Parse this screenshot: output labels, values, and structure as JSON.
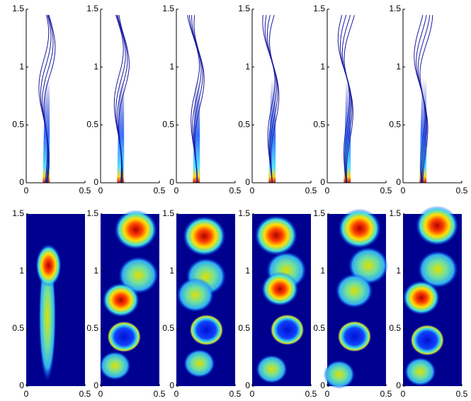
{
  "chart_data": [
    {
      "type": "contour",
      "xlim": [
        0,
        0.5
      ],
      "ylim": [
        0,
        1.5
      ],
      "xticks": [
        0,
        0.5
      ],
      "yticks": [
        0,
        0.5,
        1,
        1.5
      ]
    },
    {
      "type": "contour",
      "xlim": [
        0,
        0.5
      ],
      "ylim": [
        0,
        1.5
      ],
      "xticks": [
        0,
        0.5
      ],
      "yticks": [
        0,
        0.5,
        1,
        1.5
      ]
    },
    {
      "type": "contour",
      "xlim": [
        0,
        0.5
      ],
      "ylim": [
        0,
        1.5
      ],
      "xticks": [
        0,
        0.5
      ],
      "yticks": [
        0,
        0.5,
        1,
        1.5
      ]
    },
    {
      "type": "contour",
      "xlim": [
        0,
        0.5
      ],
      "ylim": [
        0,
        1.5
      ],
      "xticks": [
        0,
        0.5
      ],
      "yticks": [
        0,
        0.5,
        1,
        1.5
      ]
    },
    {
      "type": "contour",
      "xlim": [
        0,
        0.5
      ],
      "ylim": [
        0,
        1.5
      ],
      "xticks": [
        0,
        0.5
      ],
      "yticks": [
        0,
        0.5,
        1,
        1.5
      ]
    },
    {
      "type": "contour",
      "xlim": [
        0,
        0.5
      ],
      "ylim": [
        0,
        1.5
      ],
      "xticks": [
        0,
        0.5
      ],
      "yticks": [
        0,
        0.5,
        1,
        1.5
      ]
    },
    {
      "type": "heatmap",
      "xlim": [
        0,
        0.5
      ],
      "ylim": [
        0,
        1.5
      ],
      "xticks": [
        0,
        0.5
      ],
      "yticks": [
        0,
        0.5,
        1,
        1.5
      ]
    },
    {
      "type": "heatmap",
      "xlim": [
        0,
        0.5
      ],
      "ylim": [
        0,
        1.5
      ],
      "xticks": [
        0,
        0.5
      ],
      "yticks": [
        0,
        0.5,
        1,
        1.5
      ]
    },
    {
      "type": "heatmap",
      "xlim": [
        0,
        0.5
      ],
      "ylim": [
        0,
        1.5
      ],
      "xticks": [
        0,
        0.5
      ],
      "yticks": [
        0,
        0.5,
        1,
        1.5
      ]
    },
    {
      "type": "heatmap",
      "xlim": [
        0,
        0.5
      ],
      "ylim": [
        0,
        1.5
      ],
      "xticks": [
        0,
        0.5
      ],
      "yticks": [
        0,
        0.5,
        1,
        1.5
      ]
    },
    {
      "type": "heatmap",
      "xlim": [
        0,
        0.5
      ],
      "ylim": [
        0,
        1.5
      ],
      "xticks": [
        0,
        0.5
      ],
      "yticks": [
        0,
        0.5,
        1,
        1.5
      ]
    },
    {
      "type": "heatmap",
      "xlim": [
        0,
        0.5
      ],
      "ylim": [
        0,
        1.5
      ],
      "xticks": [
        0,
        0.5
      ],
      "yticks": [
        0,
        0.5,
        1,
        1.5
      ]
    }
  ]
}
